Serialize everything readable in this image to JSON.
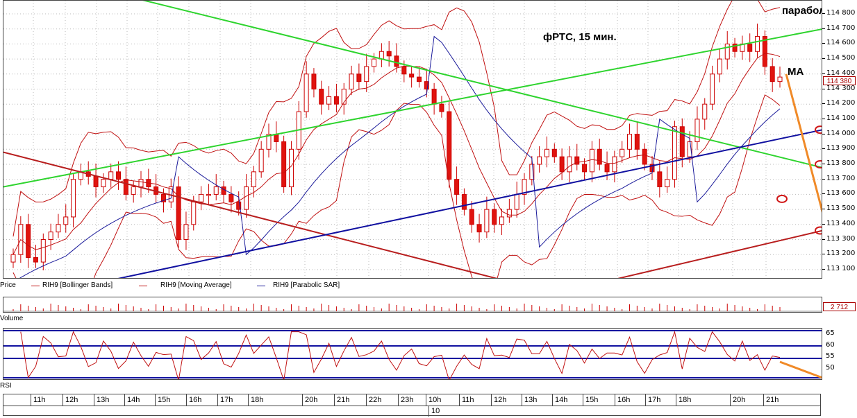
{
  "price_panel": {
    "current_price": "114 380",
    "axis_ticks": [
      "114 800",
      "114 700",
      "114 600",
      "114 500",
      "114 400",
      "114 300",
      "114 200",
      "114 100",
      "114 000",
      "113 900",
      "113 800",
      "113 700",
      "113 600",
      "113 500",
      "113 400",
      "113 300",
      "113 200",
      "113 100"
    ],
    "legend": {
      "price": "Price",
      "bollinger": "RIH9 [Bollinger Bands]",
      "ma": "RIH9 [Moving Average]",
      "sar": "RIH9 [Parabolic SAR]"
    },
    "annotations": {
      "title": "фРТС,  15 мин.",
      "parabolic": "параболик",
      "ma": "MA"
    }
  },
  "volume_panel": {
    "label": "Volume",
    "value": "2 712"
  },
  "rsi_panel": {
    "label": "RSI",
    "axis_ticks": [
      "65",
      "60",
      "55",
      "50"
    ]
  },
  "time_axis": {
    "hours": [
      "11h",
      "12h",
      "13h",
      "14h",
      "15h",
      "16h",
      "17h",
      "18h",
      "20h",
      "21h",
      "22h",
      "23h",
      "10h",
      "11h",
      "12h",
      "13h",
      "14h",
      "15h",
      "16h",
      "17h",
      "18h",
      "20h",
      "21h"
    ],
    "date": "10"
  },
  "colors": {
    "bull": "#ffffff",
    "bear": "#e0140f",
    "bollinger": "#c01010",
    "sar": "#1a1a9a",
    "green_trend": "#2ed42e",
    "red_trend": "#b81e1e",
    "blue_trend": "#1010a0",
    "orange_arrow": "#f08a28"
  },
  "chart_data": {
    "type": "candlestick",
    "title": "фРТС,  15 мин.",
    "instrument": "RIH9",
    "ylim": [
      113100,
      114800
    ],
    "closes": [
      113200,
      113400,
      113180,
      113150,
      113300,
      113350,
      113400,
      113450,
      113700,
      113750,
      113720,
      113650,
      113700,
      113750,
      113700,
      113600,
      113650,
      113700,
      113650,
      113600,
      113550,
      113650,
      113300,
      113400,
      113550,
      113600,
      113600,
      113650,
      113600,
      113550,
      113500,
      113650,
      113750,
      113900,
      114000,
      113950,
      113650,
      113900,
      114150,
      114400,
      114300,
      114200,
      114250,
      114200,
      114300,
      114400,
      114350,
      114450,
      114500,
      114550,
      114520,
      114450,
      114400,
      114380,
      114350,
      114300,
      114200,
      114150,
      113700,
      113600,
      113500,
      113400,
      113350,
      113500,
      113400,
      113450,
      113500,
      113600,
      113700,
      113800,
      113850,
      113900,
      113850,
      113750,
      113850,
      113800,
      113750,
      113900,
      113800,
      113750,
      113850,
      113900,
      114000,
      113900,
      113800,
      113750,
      113650,
      113700,
      114050,
      113850,
      113950,
      114100,
      114200,
      114400,
      114500,
      114600,
      114550,
      114600,
      114550,
      114650,
      114450,
      114350,
      114380
    ],
    "rsi_levels": [
      65,
      60,
      55,
      50
    ],
    "volume_last": 2712
  }
}
